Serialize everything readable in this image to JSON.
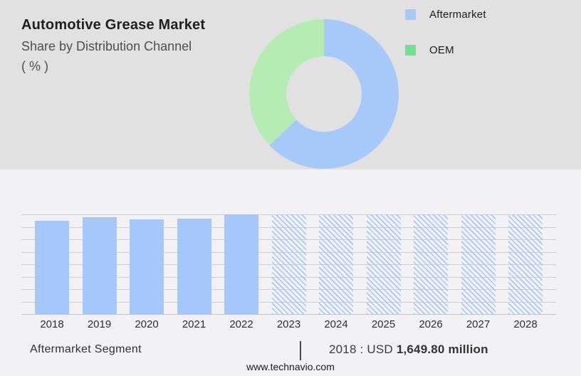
{
  "header": {
    "title": "Automotive Grease Market",
    "subtitle": "Share by Distribution Channel",
    "unit": "( % )"
  },
  "legend": {
    "items": [
      {
        "label": "Aftermarket",
        "color": "#a7c9fa"
      },
      {
        "label": "OEM",
        "color": "#70e294"
      }
    ]
  },
  "footer": {
    "segment_label": "Aftermarket Segment",
    "value_prefix": "2018 : USD ",
    "value_bold": "1,649.80 million",
    "site_url": "www.technavio.com"
  },
  "colors": {
    "top_section_bg": "#e1e1e2",
    "bottom_section_bg": "#f2f2f4",
    "bar_blue": "#a5c7f9",
    "donut_blue": "#a7c9fa",
    "donut_green": "#b6ecb4",
    "legend_green": "#70e294",
    "gridline": "#cfcfcf"
  },
  "chart_data": [
    {
      "type": "pie",
      "subtype": "donut",
      "title": "Automotive Grease Market — Share by Distribution Channel (%)",
      "start_angle_deg": 0,
      "direction": "clockwise",
      "inner_radius_ratio": 0.5,
      "slices": [
        {
          "label": "Aftermarket",
          "value_pct": 63,
          "color": "#a7c9fa"
        },
        {
          "label": "OEM",
          "value_pct": 37,
          "color": "#b6ecb4"
        }
      ],
      "legend_position": "right",
      "note": "slice percentages estimated from arc angles; no numeric labels shown in image"
    },
    {
      "type": "bar",
      "title": "Aftermarket Segment",
      "xlabel": "",
      "ylabel": "",
      "grid": "horizontal, 9 lines, no y tick labels",
      "annotation": "2018 : USD 1,649.80 million",
      "categories": [
        "2018",
        "2019",
        "2020",
        "2021",
        "2022",
        "2023",
        "2024",
        "2025",
        "2026",
        "2027",
        "2028"
      ],
      "bars": [
        {
          "year": "2018",
          "height_pct": 93.6,
          "style": "solid"
        },
        {
          "year": "2019",
          "height_pct": 97.1,
          "style": "solid"
        },
        {
          "year": "2020",
          "height_pct": 95.0,
          "style": "solid"
        },
        {
          "year": "2021",
          "height_pct": 95.7,
          "style": "solid"
        },
        {
          "year": "2022",
          "height_pct": 100,
          "style": "solid"
        },
        {
          "year": "2023",
          "height_pct": 100,
          "style": "hatch"
        },
        {
          "year": "2024",
          "height_pct": 100,
          "style": "hatch"
        },
        {
          "year": "2025",
          "height_pct": 100,
          "style": "hatch"
        },
        {
          "year": "2026",
          "height_pct": 100,
          "style": "hatch"
        },
        {
          "year": "2027",
          "height_pct": 100,
          "style": "hatch"
        },
        {
          "year": "2028",
          "height_pct": 100,
          "style": "hatch"
        },
        {
          "note": "height_pct = bar height relative to plot height (tallest solid bar 2022 = 100); 2023-2028 are full-height hatched forecast bars; only the 2018 value is labeled in the image"
        }
      ]
    }
  ]
}
